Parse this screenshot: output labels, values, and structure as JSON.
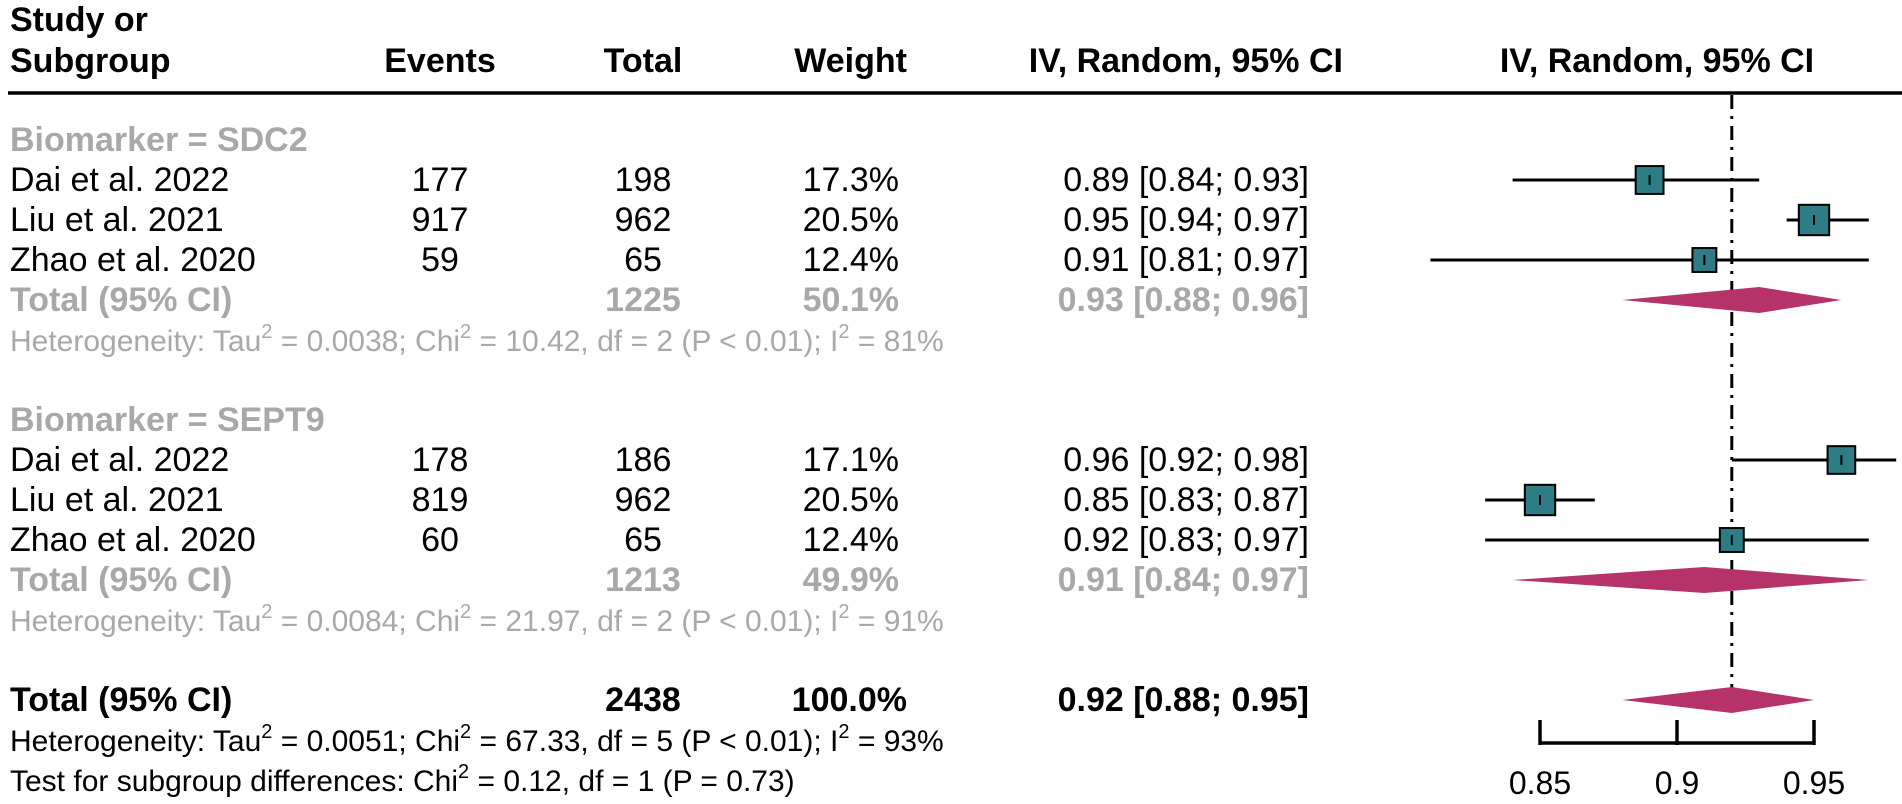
{
  "header": {
    "study_line1": "Study or",
    "study_line2": "Subgroup",
    "events": "Events",
    "total": "Total",
    "weight": "Weight",
    "ci_col": "IV, Random, 95% CI",
    "plot_col": "IV, Random, 95% CI"
  },
  "subgroups": [
    {
      "title": "Biomarker = SDC2",
      "studies": [
        {
          "name": "Dai et al.  2022",
          "events": "177",
          "total": "198",
          "weight": "17.3%",
          "ci": "0.89 [0.84; 0.93]"
        },
        {
          "name": "Liu et al.  2021",
          "events": "917",
          "total": "962",
          "weight": "20.5%",
          "ci": "0.95 [0.94; 0.97]"
        },
        {
          "name": "Zhao et al.  2020",
          "events": "59",
          "total": "65",
          "weight": "12.4%",
          "ci": "0.91 [0.81; 0.97]"
        }
      ],
      "total": {
        "label": "Total (95% CI)",
        "total": "1225",
        "weight": "50.1%",
        "ci": "0.93 [0.88; 0.96]"
      },
      "het": {
        "t1": "Heterogeneity: Tau",
        "t2": " = 0.0038; Chi",
        "t3": " = 10.42, df = 2 (P < 0.01); I",
        "t4": " = 81%"
      }
    },
    {
      "title": "Biomarker = SEPT9",
      "studies": [
        {
          "name": "Dai et al.  2022",
          "events": "178",
          "total": "186",
          "weight": "17.1%",
          "ci": "0.96 [0.92; 0.98]"
        },
        {
          "name": "Liu et al.  2021",
          "events": "819",
          "total": "962",
          "weight": "20.5%",
          "ci": "0.85 [0.83; 0.87]"
        },
        {
          "name": "Zhao et al.  2020",
          "events": "60",
          "total": "65",
          "weight": "12.4%",
          "ci": "0.92 [0.83; 0.97]"
        }
      ],
      "total": {
        "label": "Total (95% CI)",
        "total": "1213",
        "weight": "49.9%",
        "ci": "0.91 [0.84; 0.97]"
      },
      "het": {
        "t1": "Heterogeneity: Tau",
        "t2": " = 0.0084; Chi",
        "t3": " = 21.97, df = 2 (P < 0.01); I",
        "t4": " = 91%"
      }
    }
  ],
  "overall": {
    "label": "Total (95% CI)",
    "total": "2438",
    "weight": "100.0%",
    "ci": "0.92 [0.88; 0.95]",
    "het": {
      "t1": "Heterogeneity: Tau",
      "t2": " = 0.0051; Chi",
      "t3": " = 67.33, df = 5 (P < 0.01); I",
      "t4": " = 93%"
    },
    "subgroup_test": {
      "t1": "Test for subgroup differences: Chi",
      "t2": " = 0.12, df = 1 (P = 0.73)"
    }
  },
  "sup2": "2",
  "colors": {
    "box": "#2e7d86",
    "diamond": "#b5336a",
    "subgroup_text": "#a8a8a8",
    "ink": "#000000"
  },
  "chart_data": {
    "type": "forest",
    "xlim": [
      0.81,
      0.98
    ],
    "xticks": [
      0.85,
      0.9,
      0.95
    ],
    "tick_labels": [
      "0.85",
      "0.9",
      "0.95"
    ],
    "reference_line": 0.92,
    "studies": [
      {
        "subgroup": "SDC2",
        "study": "Dai et al.  2022",
        "est": 0.89,
        "lo": 0.84,
        "hi": 0.93,
        "weight": 17.3
      },
      {
        "subgroup": "SDC2",
        "study": "Liu et al.  2021",
        "est": 0.95,
        "lo": 0.94,
        "hi": 0.97,
        "weight": 20.5
      },
      {
        "subgroup": "SDC2",
        "study": "Zhao et al.  2020",
        "est": 0.91,
        "lo": 0.81,
        "hi": 0.97,
        "weight": 12.4
      },
      {
        "subgroup": "SEPT9",
        "study": "Dai et al.  2022",
        "est": 0.96,
        "lo": 0.92,
        "hi": 0.98,
        "weight": 17.1
      },
      {
        "subgroup": "SEPT9",
        "study": "Liu et al.  2021",
        "est": 0.85,
        "lo": 0.83,
        "hi": 0.87,
        "weight": 20.5
      },
      {
        "subgroup": "SEPT9",
        "study": "Zhao et al.  2020",
        "est": 0.92,
        "lo": 0.83,
        "hi": 0.97,
        "weight": 12.4
      }
    ],
    "pooled": [
      {
        "label": "SDC2 total",
        "est": 0.93,
        "lo": 0.88,
        "hi": 0.96
      },
      {
        "label": "SEPT9 total",
        "est": 0.91,
        "lo": 0.84,
        "hi": 0.97
      },
      {
        "label": "Overall total",
        "est": 0.92,
        "lo": 0.88,
        "hi": 0.95
      }
    ]
  }
}
